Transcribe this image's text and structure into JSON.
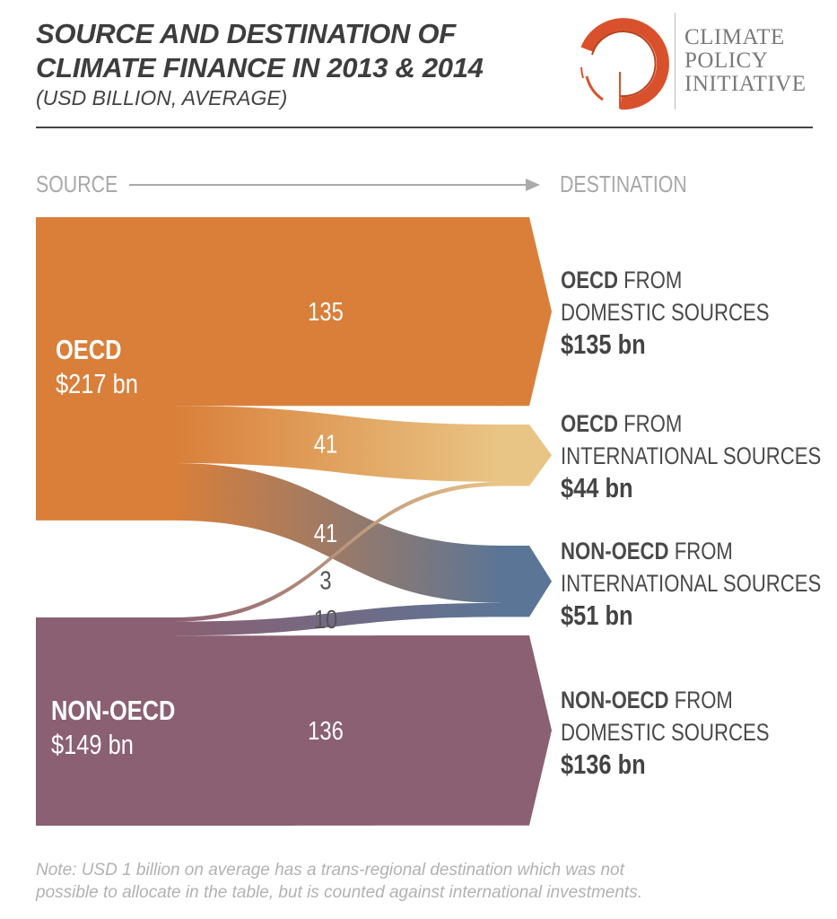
{
  "header": {
    "title_line1": "SOURCE AND DESTINATION OF",
    "title_line2": "CLIMATE FINANCE IN 2013 & 2014",
    "subtitle": "(USD BILLION, AVERAGE)"
  },
  "logo": {
    "line1": "CLIMATE",
    "line2": "POLICY",
    "line3": "INITIATIVE",
    "color": "#D9512C"
  },
  "axis": {
    "source": "SOURCE",
    "destination": "DESTINATION"
  },
  "chart_data": {
    "type": "sankey",
    "title": "SOURCE AND DESTINATION OF CLIMATE FINANCE IN 2013 & 2014",
    "subtitle": "(USD BILLION, AVERAGE)",
    "sources": [
      {
        "id": "oecd",
        "name": "OECD",
        "value_label": "$217 bn",
        "value": 217,
        "color": "#D97F3A"
      },
      {
        "id": "nonoecd",
        "name": "NON-OECD",
        "value_label": "$149 bn",
        "value": 149,
        "color": "#8A6072"
      }
    ],
    "destinations": [
      {
        "id": "d1",
        "name_bold": "OECD",
        "name_rest": " FROM",
        "line2": "DOMESTIC SOURCES",
        "value_label": "$135 bn",
        "value": 135,
        "color": "#D97F3A"
      },
      {
        "id": "d2",
        "name_bold": "OECD",
        "name_rest": " FROM",
        "line2": "INTERNATIONAL SOURCES",
        "value_label": "$44 bn",
        "value": 44,
        "color": "#E9C585"
      },
      {
        "id": "d3",
        "name_bold": "NON-OECD",
        "name_rest": " FROM",
        "line2": "INTERNATIONAL SOURCES",
        "value_label": "$51 bn",
        "value": 51,
        "color": "#5B7596"
      },
      {
        "id": "d4",
        "name_bold": "NON-OECD",
        "name_rest": " FROM",
        "line2": "DOMESTIC SOURCES",
        "value_label": "$136 bn",
        "value": 136,
        "color": "#8A6072"
      }
    ],
    "flows": [
      {
        "source": "oecd",
        "target": "d1",
        "value": 135,
        "label": "135"
      },
      {
        "source": "oecd",
        "target": "d2",
        "value": 41,
        "label": "41"
      },
      {
        "source": "oecd",
        "target": "d3",
        "value": 41,
        "label": "41"
      },
      {
        "source": "nonoecd",
        "target": "d2",
        "value": 3,
        "label": "3"
      },
      {
        "source": "nonoecd",
        "target": "d3",
        "value": 10,
        "label": "10"
      },
      {
        "source": "nonoecd",
        "target": "d4",
        "value": 136,
        "label": "136"
      }
    ]
  },
  "note": {
    "line1": "Note: USD 1 billion on average has a trans-regional destination which was not",
    "line2": "possible to allocate in the table, but is counted against international investments."
  }
}
